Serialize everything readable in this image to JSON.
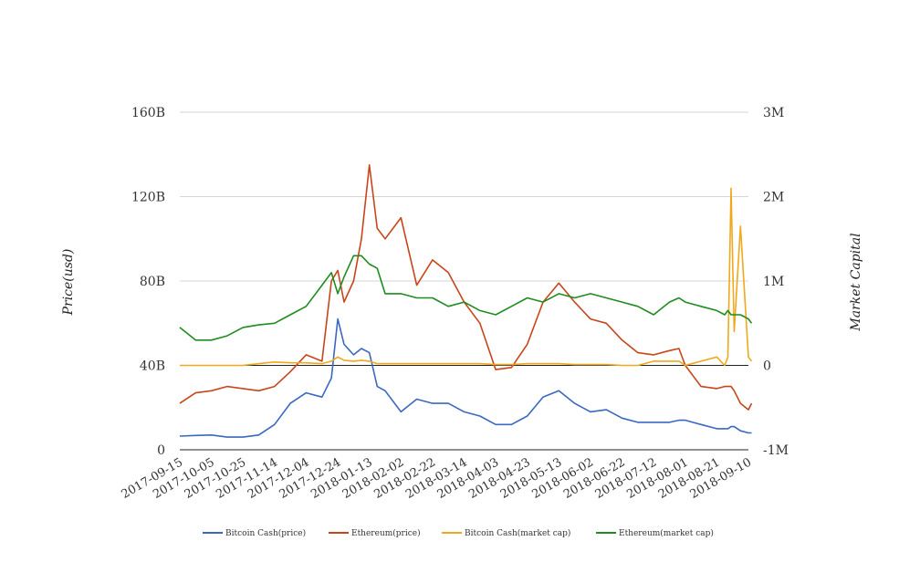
{
  "chart_data": {
    "type": "line",
    "title": "",
    "ylabel": "Price(usd)",
    "y2label": "Market Capital",
    "x_tick_labels": [
      "2017-09-15",
      "2017-10-05",
      "2017-10-25",
      "2017-11-14",
      "2017-12-04",
      "2017-12-24",
      "2018-01-13",
      "2018-02-02",
      "2018-02-22",
      "2018-03-14",
      "2018-04-03",
      "2018-04-23",
      "2018-05-13",
      "2018-06-02",
      "2018-06-22",
      "2018-07-12",
      "2018-08-01",
      "2018-08-21",
      "2018-09-10"
    ],
    "y_tick_labels": [
      "0",
      "40B",
      "80B",
      "120B",
      "160B"
    ],
    "y2_tick_labels": [
      "-1M",
      "0",
      "1M",
      "2M",
      "3M"
    ],
    "ylim": [
      0,
      160
    ],
    "y2lim": [
      -1,
      3
    ],
    "grid": true,
    "legend_position": "bottom",
    "x": [
      "2017-09-15",
      "2017-09-25",
      "2017-10-05",
      "2017-10-15",
      "2017-10-25",
      "2017-11-04",
      "2017-11-14",
      "2017-11-24",
      "2017-12-04",
      "2017-12-14",
      "2017-12-20",
      "2017-12-24",
      "2017-12-28",
      "2018-01-03",
      "2018-01-08",
      "2018-01-13",
      "2018-01-18",
      "2018-01-23",
      "2018-02-02",
      "2018-02-12",
      "2018-02-22",
      "2018-03-04",
      "2018-03-14",
      "2018-03-24",
      "2018-04-03",
      "2018-04-13",
      "2018-04-23",
      "2018-05-03",
      "2018-05-13",
      "2018-05-23",
      "2018-06-02",
      "2018-06-12",
      "2018-06-22",
      "2018-07-02",
      "2018-07-12",
      "2018-07-22",
      "2018-07-28",
      "2018-08-01",
      "2018-08-11",
      "2018-08-21",
      "2018-08-26",
      "2018-08-28",
      "2018-08-30",
      "2018-09-01",
      "2018-09-05",
      "2018-09-10",
      "2018-09-12"
    ],
    "series": [
      {
        "name": "Bitcoin Cash(price)",
        "color": "#3a68c0",
        "axis": "left",
        "values": [
          6.5,
          6.8,
          7.0,
          6.0,
          6.0,
          7.0,
          12.0,
          22.0,
          27.0,
          25.0,
          34.0,
          62.0,
          50.0,
          45.0,
          48.0,
          46.0,
          30.0,
          28.0,
          18.0,
          24.0,
          22.0,
          22.0,
          18.0,
          16.0,
          12.0,
          12.0,
          16.0,
          25.0,
          28.0,
          22.0,
          18.0,
          19.0,
          15.0,
          13.0,
          13.0,
          13.0,
          14.0,
          14.0,
          12.0,
          10.0,
          10.0,
          10.0,
          11.0,
          11.0,
          9.0,
          8.0,
          8.0
        ]
      },
      {
        "name": "Ethereum(price)",
        "color": "#c8451a",
        "axis": "left",
        "values": [
          22.0,
          27.0,
          28.0,
          30.0,
          29.0,
          28.0,
          30.0,
          37.0,
          45.0,
          42.0,
          80.0,
          85.0,
          70.0,
          80.0,
          100.0,
          135.0,
          105.0,
          100.0,
          110.0,
          78.0,
          90.0,
          84.0,
          70.0,
          60.0,
          38.0,
          39.0,
          50.0,
          70.0,
          79.0,
          70.0,
          62.0,
          60.0,
          52.0,
          46.0,
          45.0,
          47.0,
          48.0,
          40.0,
          30.0,
          29.0,
          30.0,
          30.0,
          30.0,
          28.0,
          22.0,
          19.0,
          22.0
        ]
      },
      {
        "name": "Bitcoin Cash(market cap)",
        "color": "#f0a81c",
        "axis": "right",
        "values": [
          0.0,
          0.0,
          0.0,
          0.0,
          0.0,
          0.02,
          0.04,
          0.03,
          0.03,
          0.02,
          0.05,
          0.1,
          0.06,
          0.05,
          0.06,
          0.05,
          0.02,
          0.02,
          0.02,
          0.02,
          0.02,
          0.02,
          0.02,
          0.02,
          0.01,
          0.01,
          0.02,
          0.02,
          0.02,
          0.01,
          0.01,
          0.01,
          0.0,
          0.0,
          0.05,
          0.05,
          0.05,
          0.0,
          0.05,
          0.1,
          0.0,
          0.1,
          2.1,
          0.4,
          1.65,
          0.1,
          0.05
        ]
      },
      {
        "name": "Ethereum(market cap)",
        "color": "#1e8c1e",
        "axis": "right",
        "values": [
          0.45,
          0.3,
          0.3,
          0.35,
          0.45,
          0.48,
          0.5,
          0.6,
          0.7,
          0.95,
          1.1,
          0.85,
          1.05,
          1.3,
          1.3,
          1.2,
          1.15,
          0.85,
          0.85,
          0.8,
          0.8,
          0.7,
          0.75,
          0.65,
          0.6,
          0.7,
          0.8,
          0.75,
          0.85,
          0.8,
          0.85,
          0.8,
          0.75,
          0.7,
          0.6,
          0.75,
          0.8,
          0.75,
          0.7,
          0.65,
          0.6,
          0.65,
          0.6,
          0.6,
          0.6,
          0.55,
          0.5
        ]
      }
    ]
  }
}
